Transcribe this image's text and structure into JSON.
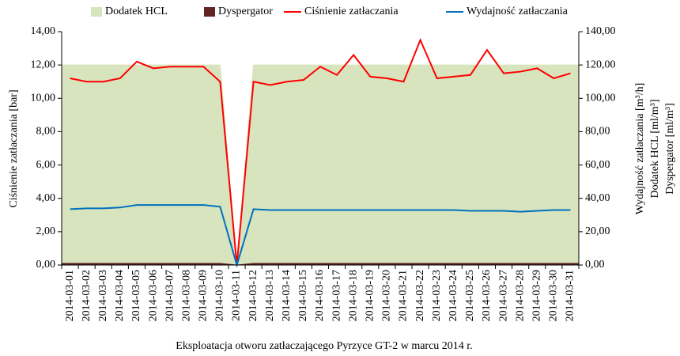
{
  "chart_data": {
    "type": "combo",
    "x_label": "Eksploatacja otworu zatłaczającego Pyrzyce GT-2 w marcu 2014 r.",
    "y_label": "Ciśnienie zatłaczania [bar]",
    "y2_labels": [
      "Wydajność zatłaczania [m³/h]",
      "Dodatek HCL [ml/m³]",
      "Dyspergator [ml/m³]"
    ],
    "categories": [
      "2014-03-01",
      "2014-03-02",
      "2014-03-03",
      "2014-03-04",
      "2014-03-05",
      "2014-03-06",
      "2014-03-07",
      "2014-03-08",
      "2014-03-09",
      "2014-03-10",
      "2014-03-11",
      "2014-03-12",
      "2014-03-13",
      "2014-03-14",
      "2014-03-15",
      "2014-03-16",
      "2014-03-17",
      "2014-03-18",
      "2014-03-19",
      "2014-03-20",
      "2014-03-21",
      "2014-03-22",
      "2014-03-23",
      "2014-03-24",
      "2014-03-25",
      "2014-03-26",
      "2014-03-27",
      "2014-03-28",
      "2014-03-29",
      "2014-03-30",
      "2014-03-31"
    ],
    "series": [
      {
        "name": "Dodatek HCL",
        "type": "area",
        "axis": "y2",
        "color": "#d7e4bd",
        "values": [
          120,
          120,
          120,
          120,
          120,
          120,
          120,
          120,
          120,
          120,
          0,
          120,
          120,
          120,
          120,
          120,
          120,
          120,
          120,
          120,
          120,
          120,
          120,
          120,
          120,
          120,
          120,
          120,
          120,
          120,
          120
        ]
      },
      {
        "name": "Dyspergator",
        "type": "area",
        "axis": "y2",
        "color": "#632523",
        "values": [
          1,
          1,
          1,
          1,
          1,
          1,
          1,
          1,
          1,
          1,
          0,
          1,
          1,
          1,
          1,
          1,
          1,
          1,
          1,
          1,
          1,
          1,
          1,
          1,
          1,
          1,
          1,
          1,
          1,
          1,
          1
        ]
      },
      {
        "name": "Ciśnienie zatłaczania",
        "type": "line",
        "axis": "y",
        "color": "#ff0000",
        "values": [
          11.2,
          11.0,
          11.0,
          11.2,
          12.2,
          11.8,
          11.9,
          11.9,
          11.9,
          11.0,
          0,
          11.0,
          10.8,
          11.0,
          11.1,
          11.9,
          11.4,
          12.6,
          11.3,
          11.2,
          11.0,
          13.5,
          11.2,
          11.3,
          11.4,
          12.9,
          11.5,
          11.6,
          11.8,
          11.2,
          11.5
        ]
      },
      {
        "name": "Wydajność zatłaczania",
        "type": "line",
        "axis": "y2",
        "color": "#0070c0",
        "values": [
          33.5,
          34,
          34,
          34.5,
          36,
          36,
          36,
          36,
          36,
          35,
          0,
          33.5,
          33,
          33,
          33,
          33,
          33,
          33,
          33,
          33,
          33,
          33,
          33,
          33,
          32.5,
          32.5,
          32.5,
          32,
          32.5,
          33,
          33
        ]
      }
    ],
    "ylim": [
      0,
      14
    ],
    "yticks": [
      {
        "value": 0,
        "label": "0,00"
      },
      {
        "value": 2,
        "label": "2,00"
      },
      {
        "value": 4,
        "label": "4,00"
      },
      {
        "value": 6,
        "label": "6,00"
      },
      {
        "value": 8,
        "label": "8,00"
      },
      {
        "value": 10,
        "label": "10,00"
      },
      {
        "value": 12,
        "label": "12,00"
      },
      {
        "value": 14,
        "label": "14,00"
      }
    ],
    "y2lim": [
      0,
      140
    ],
    "y2ticks": [
      {
        "value": 0,
        "label": "0,00"
      },
      {
        "value": 20,
        "label": "20,00"
      },
      {
        "value": 40,
        "label": "40,00"
      },
      {
        "value": 60,
        "label": "60,00"
      },
      {
        "value": 80,
        "label": "80,00"
      },
      {
        "value": 100,
        "label": "100,00"
      },
      {
        "value": 120,
        "label": "120,00"
      },
      {
        "value": 140,
        "label": "140,00"
      }
    ],
    "grid": false,
    "legend": "top"
  }
}
